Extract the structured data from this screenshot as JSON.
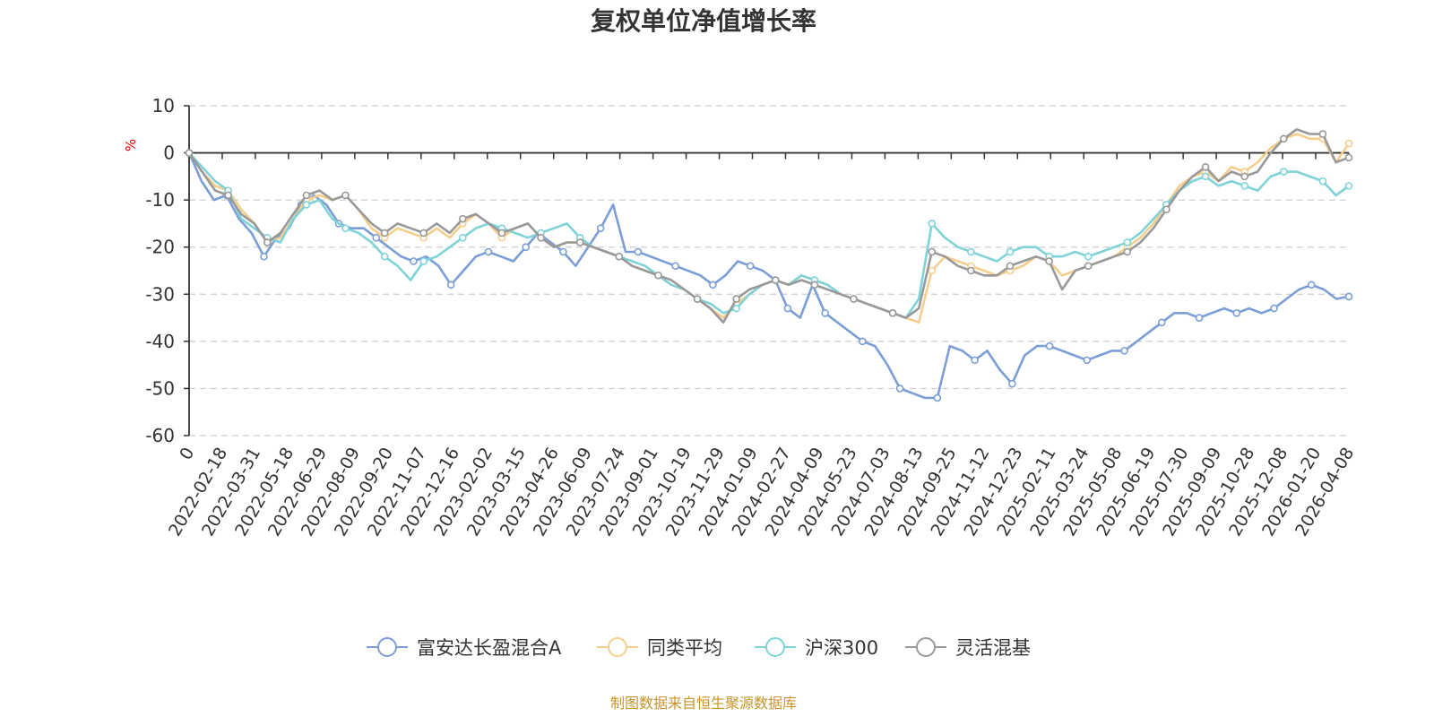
{
  "chart_data": {
    "type": "line",
    "title": "复权单位净值增长率",
    "ylabel": "%",
    "ylim": [
      -60,
      10
    ],
    "yticks": [
      10,
      0,
      -10,
      -20,
      -30,
      -40,
      -50,
      -60
    ],
    "grid": "horizontal-dashed",
    "legend_position": "bottom-center",
    "x_start_label": "0",
    "x_tick_labels": [
      "2022-02-18",
      "2022-03-31",
      "2022-05-18",
      "2022-06-29",
      "2022-08-09",
      "2022-09-20",
      "2022-11-07",
      "2022-12-16",
      "2023-02-02",
      "2023-03-15",
      "2023-04-26",
      "2023-06-09",
      "2023-07-24",
      "2023-09-01",
      "2023-10-19",
      "2023-11-29",
      "2024-01-09",
      "2024-02-27",
      "2024-04-09",
      "2024-05-23",
      "2024-07-03",
      "2024-08-13",
      "2024-09-25",
      "2024-11-12",
      "2024-12-23",
      "2025-02-11",
      "2025-03-24",
      "2025-05-08",
      "2025-06-19",
      "2025-07-30",
      "2025-09-09",
      "2025-10-28",
      "2025-12-08",
      "2026-01-20",
      "2026-04-08"
    ],
    "series": [
      {
        "name": "富安达长盈混合A",
        "color": "#7b9ed6",
        "values": [
          0,
          -6,
          -10,
          -9,
          -14,
          -17,
          -22,
          -18,
          -16,
          -11,
          -9,
          -11,
          -15,
          -16,
          -16,
          -18,
          -20,
          -22,
          -23,
          -22,
          -24,
          -28,
          -25,
          -22,
          -21,
          -22,
          -23,
          -20,
          -17,
          -19,
          -21,
          -24,
          -20,
          -16,
          -11,
          -21,
          -21,
          -22,
          -23,
          -24,
          -25,
          -26,
          -28,
          -26,
          -23,
          -24,
          -25,
          -27,
          -33,
          -35,
          -28,
          -34,
          -36,
          -38,
          -40,
          -41,
          -45,
          -50,
          -51,
          -52,
          -52,
          -41,
          -42,
          -44,
          -42,
          -46,
          -49,
          -43,
          -41,
          -41,
          -42,
          -43,
          -44,
          -43,
          -42,
          -42,
          -40,
          -38,
          -36,
          -34,
          -34,
          -35,
          -34,
          -33,
          -34,
          -33,
          -34,
          -33,
          -31,
          -29,
          -28,
          -29,
          -31,
          -30.5
        ]
      },
      {
        "name": "同类平均",
        "color": "#f5ce8c",
        "values": [
          0,
          -4,
          -7,
          -8,
          -12,
          -15,
          -19,
          -18,
          -14,
          -10,
          -9,
          -10,
          -9,
          -12,
          -16,
          -18,
          -16,
          -17,
          -18,
          -16,
          -18,
          -15,
          -13,
          -15,
          -18,
          -16,
          -15,
          -18,
          -20,
          -19,
          -19,
          -20,
          -21,
          -22,
          -24,
          -25,
          -26,
          -28,
          -29,
          -31,
          -33,
          -35,
          -32,
          -30,
          -28,
          -27,
          -28,
          -26,
          -27,
          -28,
          -30,
          -31,
          -32,
          -33,
          -34,
          -35,
          -36,
          -25,
          -22,
          -23,
          -24,
          -25,
          -26,
          -25,
          -24,
          -22,
          -23,
          -26,
          -25,
          -24,
          -23,
          -22,
          -20,
          -18,
          -15,
          -11,
          -7,
          -5,
          -4,
          -6,
          -3,
          -4,
          -2,
          1,
          3,
          4,
          3,
          3,
          -2,
          2
        ]
      },
      {
        "name": "沪深300",
        "color": "#7fd3d8",
        "values": [
          0,
          -3,
          -6,
          -8,
          -14,
          -16,
          -18,
          -19,
          -14,
          -11,
          -10,
          -14,
          -16,
          -17,
          -19,
          -22,
          -24,
          -27,
          -23,
          -22,
          -20,
          -18,
          -16,
          -15,
          -16,
          -17,
          -18,
          -17,
          -16,
          -15,
          -18,
          -20,
          -21,
          -22,
          -23,
          -24,
          -26,
          -28,
          -29,
          -31,
          -32,
          -34,
          -33,
          -30,
          -28,
          -27,
          -28,
          -26,
          -27,
          -28,
          -30,
          -31,
          -32,
          -33,
          -34,
          -35,
          -31,
          -15,
          -18,
          -20,
          -21,
          -22,
          -23,
          -21,
          -20,
          -20,
          -22,
          -22,
          -21,
          -22,
          -21,
          -20,
          -19,
          -17,
          -14,
          -11,
          -8,
          -6,
          -5,
          -7,
          -6,
          -7,
          -8,
          -5,
          -4,
          -4,
          -5,
          -6,
          -9,
          -7
        ]
      },
      {
        "name": "灵活混基",
        "color": "#999999",
        "values": [
          0,
          -4,
          -8,
          -9,
          -13,
          -15,
          -19,
          -17,
          -13,
          -9,
          -8,
          -10,
          -9,
          -12,
          -15,
          -17,
          -15,
          -16,
          -17,
          -15,
          -17,
          -14,
          -13,
          -15,
          -17,
          -16,
          -15,
          -18,
          -20,
          -19,
          -19,
          -20,
          -21,
          -22,
          -24,
          -25,
          -26,
          -27,
          -29,
          -31,
          -33,
          -36,
          -31,
          -29,
          -28,
          -27,
          -28,
          -27,
          -28,
          -29,
          -30,
          -31,
          -32,
          -33,
          -34,
          -35,
          -33,
          -21,
          -22,
          -24,
          -25,
          -26,
          -26,
          -24,
          -23,
          -22,
          -23,
          -29,
          -25,
          -24,
          -23,
          -22,
          -21,
          -19,
          -16,
          -12,
          -8,
          -5,
          -3,
          -6,
          -4,
          -5,
          -4,
          0,
          3,
          5,
          4,
          4,
          -2,
          -1
        ]
      }
    ]
  },
  "source_note": "制图数据来自恒生聚源数据库"
}
